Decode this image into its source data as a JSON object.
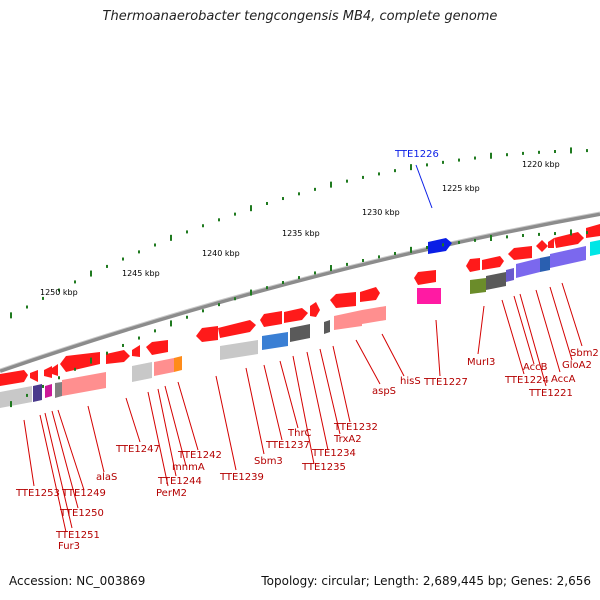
{
  "title": "Thermoanaerobacter tengcongensis MB4, complete genome",
  "footer": {
    "accession": "Accession: NC_003869",
    "topology": "Topology: circular; Length: 2,689,445 bp; Genes: 2,656"
  },
  "scale_labels": [
    "1250 kbp",
    "1245 kbp",
    "1240 kbp",
    "1235 kbp",
    "1230 kbp",
    "1225 kbp",
    "1220 kbp"
  ],
  "highlighted_gene": "TTE1226",
  "gene_labels": [
    "TTE1253",
    "Fur3",
    "TTE1251",
    "TTE1250",
    "TTE1249",
    "alaS",
    "TTE1247",
    "PerM2",
    "TTE1244",
    "mnmA",
    "TTE1242",
    "TTE1239",
    "Sbm3",
    "TTE1237",
    "ThrC",
    "TTE1235",
    "TTE1234",
    "TrxA2",
    "TTE1232",
    "aspS",
    "hisS",
    "TTE1227",
    "MurI3",
    "TTE1224",
    "AccB",
    "TTE1221",
    "AccA",
    "GloA2",
    "Sbm2"
  ],
  "colors": {
    "gene": "#ff1a1a",
    "highlight": "#0a1ee6",
    "label": "#b40000",
    "scale_dot": "#1f7a1f",
    "backbone": "#8c8c8c"
  }
}
